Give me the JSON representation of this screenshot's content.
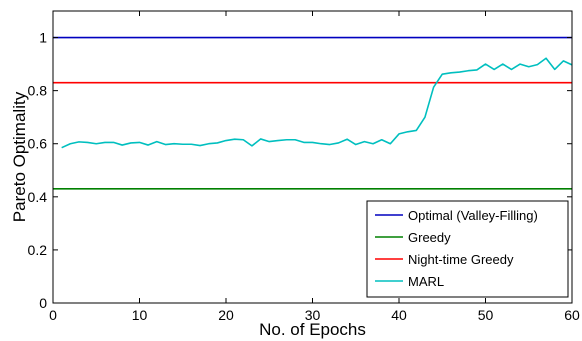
{
  "chart_data": {
    "type": "line",
    "title": "",
    "xlabel": "No. of Epochs",
    "ylabel": "Pareto Optimality",
    "xlim": [
      0,
      60
    ],
    "ylim": [
      0,
      1.1
    ],
    "xticks": [
      "0",
      "10",
      "20",
      "30",
      "40",
      "50",
      "60"
    ],
    "yticks": [
      "0",
      "0.2",
      "0.4",
      "0.6",
      "0.8",
      "1"
    ],
    "grid": false,
    "legend_position": "bottom-right",
    "series": [
      {
        "name": "Optimal (Valley-Filling)",
        "color": "#0000bf",
        "x": [
          0,
          60
        ],
        "values": [
          1.0,
          1.0
        ]
      },
      {
        "name": "Greedy",
        "color": "#008000",
        "x": [
          0,
          60
        ],
        "values": [
          0.43,
          0.43
        ]
      },
      {
        "name": "Night-time Greedy",
        "color": "#ff0000",
        "x": [
          0,
          60
        ],
        "values": [
          0.83,
          0.83
        ]
      },
      {
        "name": "MARL",
        "color": "#00bfbf",
        "x": [
          1,
          2,
          3,
          4,
          5,
          6,
          7,
          8,
          9,
          10,
          11,
          12,
          13,
          14,
          15,
          16,
          17,
          18,
          19,
          20,
          21,
          22,
          23,
          24,
          25,
          26,
          27,
          28,
          29,
          30,
          31,
          32,
          33,
          34,
          35,
          36,
          37,
          38,
          39,
          40,
          41,
          42,
          43,
          44,
          45,
          46,
          47,
          48,
          49,
          50,
          51,
          52,
          53,
          54,
          55,
          56,
          57,
          58,
          59,
          60
        ],
        "values": [
          0.585,
          0.6,
          0.607,
          0.605,
          0.6,
          0.605,
          0.605,
          0.595,
          0.603,
          0.605,
          0.595,
          0.608,
          0.597,
          0.6,
          0.598,
          0.598,
          0.593,
          0.6,
          0.603,
          0.612,
          0.617,
          0.615,
          0.592,
          0.618,
          0.608,
          0.612,
          0.615,
          0.615,
          0.605,
          0.605,
          0.6,
          0.597,
          0.603,
          0.617,
          0.597,
          0.608,
          0.6,
          0.615,
          0.6,
          0.637,
          0.645,
          0.65,
          0.7,
          0.813,
          0.862,
          0.867,
          0.87,
          0.875,
          0.878,
          0.9,
          0.88,
          0.9,
          0.88,
          0.9,
          0.89,
          0.898,
          0.922,
          0.88,
          0.912,
          0.897
        ]
      }
    ]
  }
}
